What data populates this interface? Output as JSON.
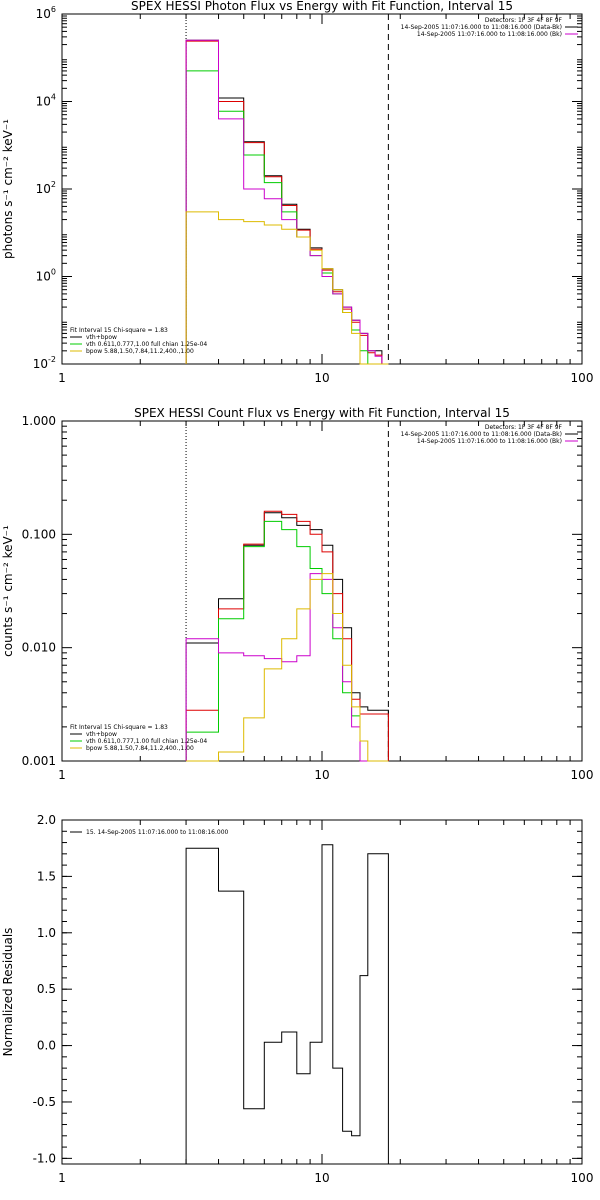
{
  "chart_data": [
    {
      "type": "line",
      "title": "SPEX HESSI Photon Flux vs Energy with Fit Function, Interval 15",
      "ylabel": "photons s⁻¹ cm⁻² keV⁻¹",
      "xlim": [
        1,
        100
      ],
      "xlog": true,
      "ylim": [
        0.01,
        1000000
      ],
      "ylog": true,
      "xticks": [
        {
          "v": 1,
          "label": "1"
        },
        {
          "v": 10,
          "label": "10"
        },
        {
          "v": 100,
          "label": "100"
        }
      ],
      "yticks": [
        {
          "v": 0.01,
          "base": "10",
          "exp": "-2"
        },
        {
          "v": 1,
          "base": "10",
          "exp": "0"
        },
        {
          "v": 100,
          "base": "10",
          "exp": "2"
        },
        {
          "v": 10000,
          "base": "10",
          "exp": "4"
        },
        {
          "v": 1000000,
          "base": "10",
          "exp": "6"
        }
      ],
      "vlines": [
        {
          "x": 3,
          "style": "dotted"
        },
        {
          "x": 18,
          "style": "dashed"
        }
      ],
      "info_lines": [
        {
          "text": "Detectors: 1F 3F 4F 8F 9F"
        },
        {
          "text": "14-Sep-2005 11:07:16.000 to 11:08:16.000 (Data-Bk)",
          "color": "#000000"
        },
        {
          "text": "14-Sep-2005 11:07:16.000 to 11:08:16.000 (Bk)",
          "color": "#cc00cc"
        }
      ],
      "legend_title": "Fit Interval 15   Chi-square = 1.83",
      "edges": [
        3,
        4,
        5,
        6,
        7,
        8,
        9,
        10,
        11,
        12,
        13,
        14,
        15,
        16,
        17,
        18
      ],
      "series": [
        {
          "name": "vth+bpow",
          "color": "#000000",
          "values": [
            250000,
            12000,
            1200,
            200,
            45,
            12,
            4.5,
            1.5,
            0.5,
            0.2,
            0.1,
            0.05,
            0.02,
            0.02,
            0.01
          ]
        },
        {
          "name": "",
          "color": "#dd0000",
          "values": [
            240000,
            10000,
            1150,
            190,
            42,
            11.5,
            4.2,
            1.4,
            0.45,
            0.18,
            0.09,
            0.045,
            0.018,
            0.016,
            0.01
          ]
        },
        {
          "name": "vth 0.611,0.777,1.00  full chian 1.25e-04",
          "color": "#00cc00",
          "values": [
            50000,
            6000,
            600,
            140,
            30,
            8,
            3,
            1.2,
            0.4,
            0.15,
            0.06,
            0.02,
            0.01,
            0.01,
            0.01
          ]
        },
        {
          "name": "",
          "color": "#cc00cc",
          "values": [
            250000,
            4000,
            100,
            60,
            20,
            8,
            3,
            1,
            0.4,
            0.2,
            0.1,
            0.05,
            0.02,
            0.015,
            0.01
          ]
        },
        {
          "name": "bpow 5.88,1.50,7.84,11.2,400.,1.00",
          "color": "#ddbb00",
          "values": [
            30,
            20,
            18,
            15,
            12,
            8,
            4,
            1.5,
            0.5,
            0.15,
            0.05,
            0.01,
            0.01,
            0.01,
            0.01
          ]
        }
      ]
    },
    {
      "type": "line",
      "title": "SPEX HESSI Count Flux vs Energy with Fit Function, Interval 15",
      "ylabel": "counts s⁻¹ cm⁻² keV⁻¹",
      "xlim": [
        1,
        100
      ],
      "xlog": true,
      "ylim": [
        0.001,
        1.0
      ],
      "ylog": true,
      "xticks": [
        {
          "v": 1,
          "label": "1"
        },
        {
          "v": 10,
          "label": "10"
        },
        {
          "v": 100,
          "label": "100"
        }
      ],
      "yticks": [
        {
          "v": 0.001,
          "label": "0.001"
        },
        {
          "v": 0.01,
          "label": "0.010"
        },
        {
          "v": 0.1,
          "label": "0.100"
        },
        {
          "v": 1.0,
          "label": "1.000"
        }
      ],
      "vlines": [
        {
          "x": 3,
          "style": "dotted"
        },
        {
          "x": 18,
          "style": "dashed"
        }
      ],
      "info_lines": [
        {
          "text": "Detectors: 1F 3F 4F 8F 9F"
        },
        {
          "text": "14-Sep-2005 11:07:16.000 to 11:08:16.000 (Data-Bk)",
          "color": "#000000"
        },
        {
          "text": "14-Sep-2005 11:07:16.000 to 11:08:16.000 (Bk)",
          "color": "#cc00cc"
        }
      ],
      "legend_title": "Fit Interval 15   Chi-square = 1.83",
      "edges": [
        3,
        4,
        5,
        6,
        7,
        8,
        9,
        10,
        11,
        12,
        13,
        14,
        15,
        16,
        17,
        18
      ],
      "series": [
        {
          "name": "vth+bpow",
          "color": "#000000",
          "values": [
            0.011,
            0.027,
            0.08,
            0.155,
            0.14,
            0.12,
            0.11,
            0.08,
            0.04,
            0.015,
            0.004,
            0.003,
            0.0028,
            0.0028,
            0.0028
          ]
        },
        {
          "name": "",
          "color": "#dd0000",
          "values": [
            0.0028,
            0.022,
            0.082,
            0.16,
            0.15,
            0.13,
            0.1,
            0.07,
            0.03,
            0.012,
            0.0035,
            0.0026,
            0.0026,
            0.0026,
            0.0026
          ]
        },
        {
          "name": "vth 0.611,0.777,1.00  full chian 1.25e-04",
          "color": "#00cc00",
          "values": [
            0.0018,
            0.018,
            0.078,
            0.13,
            0.11,
            0.078,
            0.05,
            0.03,
            0.012,
            0.004,
            0.0025,
            0.001,
            0.001,
            0.001,
            0.001
          ]
        },
        {
          "name": "",
          "color": "#cc00cc",
          "values": [
            0.012,
            0.009,
            0.0085,
            0.008,
            0.0075,
            0.0085,
            0.045,
            0.04,
            0.015,
            0.005,
            0.002,
            0.001,
            0.001,
            0.001,
            0.001
          ]
        },
        {
          "name": "bpow 5.88,1.50,7.84,11.2,400.,1.00",
          "color": "#ddbb00",
          "values": [
            0.001,
            0.0012,
            0.0024,
            0.0065,
            0.012,
            0.022,
            0.04,
            0.045,
            0.02,
            0.007,
            0.003,
            0.0015,
            0.001,
            0.001,
            0.001
          ]
        }
      ]
    },
    {
      "type": "line",
      "title": "",
      "ylabel": "Normalized Residuals",
      "xlim": [
        1,
        100
      ],
      "xlog": true,
      "ylim": [
        -1.05,
        2.0
      ],
      "ylog": false,
      "xticks": [
        {
          "v": 1,
          "label": "1"
        },
        {
          "v": 10,
          "label": "10"
        },
        {
          "v": 100,
          "label": "100"
        }
      ],
      "yticks": [
        {
          "v": -1.0,
          "label": "-1.0"
        },
        {
          "v": -0.5,
          "label": "-0.5"
        },
        {
          "v": 0.0,
          "label": "0.0"
        },
        {
          "v": 0.5,
          "label": "0.5"
        },
        {
          "v": 1.0,
          "label": "1.0"
        },
        {
          "v": 1.5,
          "label": "1.5"
        },
        {
          "v": 2.0,
          "label": "2.0"
        }
      ],
      "vlines": [],
      "info_lines": [],
      "legend_title": "",
      "edges": [
        3,
        4,
        5,
        6,
        7,
        8,
        9,
        10,
        11,
        12,
        13,
        14,
        15,
        16,
        17,
        18
      ],
      "series": [
        {
          "name": "15. 14-Sep-2005 11:07:16.000 to 11:08:16.000",
          "color": "#000000",
          "values": [
            1.75,
            1.37,
            -0.56,
            0.03,
            0.12,
            -0.25,
            0.03,
            1.78,
            -0.2,
            -0.76,
            -0.8,
            0.62,
            1.7,
            1.7,
            1.7
          ]
        }
      ]
    }
  ]
}
